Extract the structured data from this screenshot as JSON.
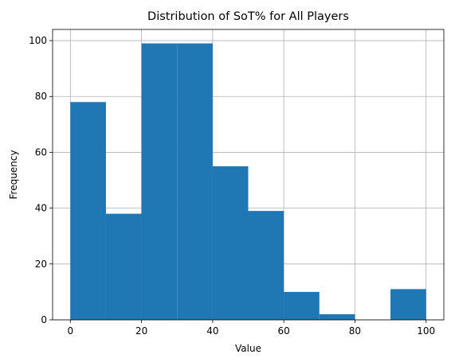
{
  "chart_data": {
    "type": "bar",
    "title": "Distribution of SoT% for All Players",
    "xlabel": "Value",
    "ylabel": "Frequency",
    "bin_edges": [
      0,
      10,
      20,
      30,
      40,
      50,
      60,
      70,
      80,
      90,
      100
    ],
    "values": [
      78,
      38,
      99,
      99,
      55,
      39,
      10,
      2,
      0,
      11
    ],
    "xlim": [
      -5,
      105
    ],
    "ylim": [
      0,
      104
    ],
    "xticks": [
      0,
      20,
      40,
      60,
      80,
      100
    ],
    "yticks": [
      0,
      20,
      40,
      60,
      80,
      100
    ],
    "grid": true,
    "bar_color": "#1f77b4",
    "grid_color": "#b0b0b0"
  }
}
